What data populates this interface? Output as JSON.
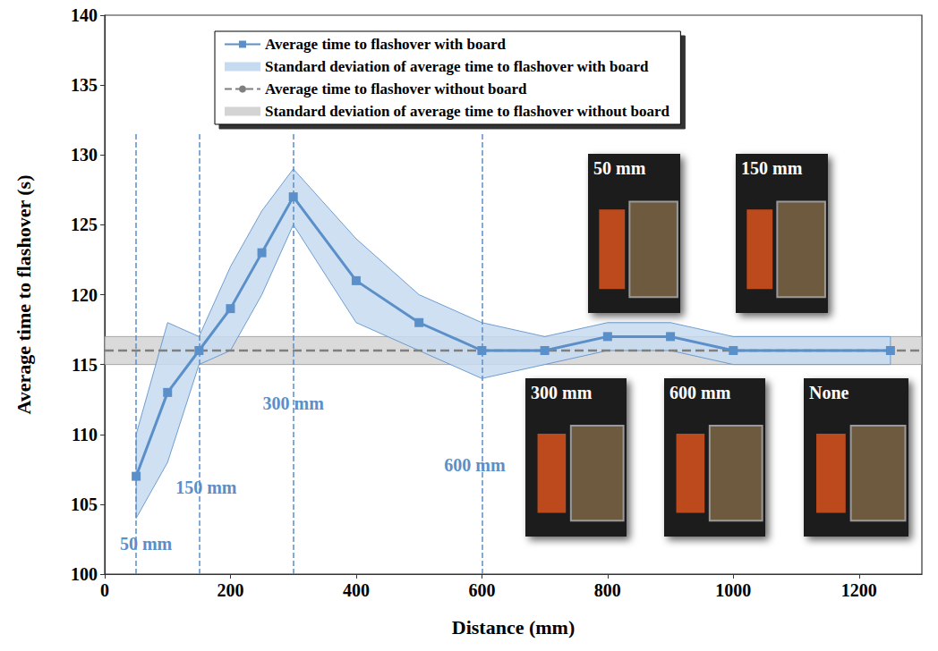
{
  "chart_data": {
    "type": "line",
    "x_label": "Distance (mm)",
    "y_label": "Average time to flashover (s)",
    "xlim": [
      0,
      1300
    ],
    "xticks": [
      0,
      200,
      400,
      600,
      800,
      1000,
      1200
    ],
    "ylim": [
      100,
      140
    ],
    "yticks": [
      100,
      105,
      110,
      115,
      120,
      125,
      130,
      135,
      140
    ],
    "grid": false,
    "legend": "top",
    "series": [
      {
        "name": "Average time to flashover with board",
        "std_name": "Standard deviation of average time to flashover with board",
        "color": "#5b8fc9",
        "std_color": "#c6daf0",
        "marker": "square",
        "line_style": "solid",
        "x": [
          50,
          100,
          150,
          200,
          250,
          300,
          400,
          500,
          600,
          700,
          800,
          900,
          1000,
          1250
        ],
        "values": [
          107,
          113,
          116,
          119,
          123,
          127,
          121,
          118,
          116,
          116,
          117,
          117,
          116,
          116
        ],
        "std": [
          3,
          5,
          1,
          3,
          3,
          2,
          3,
          2,
          2,
          1,
          1,
          1,
          1,
          1
        ]
      },
      {
        "name": "Average time to flashover without board",
        "std_name": "Standard deviation of average time to flashover without board",
        "color": "#7f7f7f",
        "std_color": "#d4d4d4",
        "line_style": "dashed",
        "values": [
          116
        ],
        "std": [
          1
        ]
      }
    ],
    "reference_lines": [
      {
        "x": 50,
        "label": "50 mm"
      },
      {
        "x": 150,
        "label": "150 mm"
      },
      {
        "x": 300,
        "label": "300 mm"
      },
      {
        "x": 600,
        "label": "600 mm"
      }
    ],
    "image_labels": [
      "50 mm",
      "150 mm",
      "300 mm",
      "600 mm",
      "None"
    ]
  }
}
